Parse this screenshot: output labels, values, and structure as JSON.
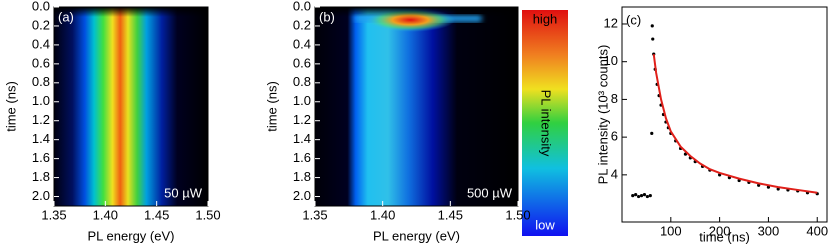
{
  "chart_data": [
    {
      "type": "heatmap",
      "annotation": "(a)",
      "power_label": "50 µW",
      "x_label": "PL energy (eV)",
      "y_label": "time (ns)",
      "xlim": [
        1.35,
        1.5
      ],
      "xticks": [
        1.35,
        {
          "value": 1.4,
          "label": "1.40"
        },
        1.45,
        {
          "value": 1.5,
          "label": "1.50"
        }
      ],
      "ylim": [
        2.1,
        0
      ],
      "yticks": [
        {
          "value": 0,
          "label": "0.0"
        },
        0.2,
        0.4,
        0.6,
        0.8,
        {
          "value": 1,
          "label": "1.0"
        },
        1.2,
        1.4,
        1.6,
        1.8,
        {
          "value": 2,
          "label": "2.0"
        }
      ]
    },
    {
      "type": "heatmap",
      "annotation": "(b)",
      "power_label": "500 µW",
      "x_label": "PL energy (eV)",
      "y_label": "time (ns)",
      "xlim": [
        1.35,
        1.5
      ],
      "xticks": [
        1.35,
        {
          "value": 1.4,
          "label": "1.40"
        },
        1.45,
        {
          "value": 1.5,
          "label": "1.50"
        }
      ],
      "ylim": [
        2.1,
        0
      ],
      "yticks": [
        {
          "value": 0,
          "label": "0.0"
        },
        0.2,
        0.4,
        0.6,
        0.8,
        {
          "value": 1,
          "label": "1.0"
        },
        1.2,
        1.4,
        1.6,
        1.8,
        {
          "value": 2,
          "label": "2.0"
        }
      ],
      "colorbar": {
        "label": "PL intensity",
        "high": "high",
        "low": "low"
      }
    },
    {
      "type": "scatter",
      "annotation": "(c)",
      "x_label": "time (ns)",
      "y_label": "PL intensity (10³ counts)",
      "xlim": [
        0,
        420
      ],
      "xticks": [
        100,
        200,
        300,
        400
      ],
      "ylim": [
        1.5,
        12.9
      ],
      "yticks": [
        4,
        6,
        8,
        10,
        12
      ],
      "series": [
        {
          "color": "#000000",
          "x": [
            22,
            28,
            34,
            40,
            46,
            52,
            58,
            61,
            62,
            63,
            65,
            68,
            72,
            76,
            80,
            85,
            90,
            95,
            100,
            110,
            120,
            130,
            140,
            150,
            165,
            180,
            200,
            220,
            240,
            260,
            280,
            300,
            320,
            340,
            360,
            380,
            400
          ],
          "values": [
            2.9,
            2.95,
            2.85,
            2.9,
            2.95,
            2.85,
            2.9,
            6.2,
            11.9,
            11.2,
            10.4,
            9.6,
            8.8,
            8.2,
            7.7,
            7.2,
            6.8,
            6.5,
            6.2,
            5.8,
            5.4,
            5.1,
            4.9,
            4.7,
            4.45,
            4.25,
            4.0,
            3.85,
            3.7,
            3.6,
            3.45,
            3.35,
            3.25,
            3.2,
            3.15,
            3.05,
            3.0
          ]
        },
        {
          "color": "#e0201a",
          "line": true,
          "x": [
            65,
            70,
            80,
            90,
            100,
            120,
            140,
            160,
            180,
            200,
            240,
            280,
            320,
            360,
            400
          ],
          "values": [
            10.4,
            9.4,
            8.0,
            7.0,
            6.3,
            5.5,
            5.0,
            4.6,
            4.3,
            4.1,
            3.8,
            3.55,
            3.35,
            3.2,
            3.05
          ]
        }
      ]
    }
  ]
}
